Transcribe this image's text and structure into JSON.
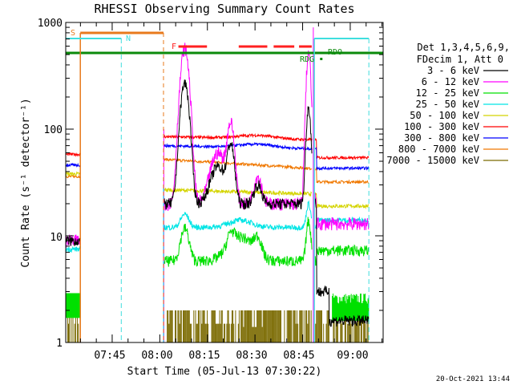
{
  "chart_data": {
    "type": "line",
    "title": "RHESSI Observing Summary Count Rates",
    "xlabel": "Start Time (05-Jul-13 07:30:22)",
    "ylabel": "Count Rate (s⁻¹ detector⁻¹)",
    "yscale": "log",
    "ylim": [
      1,
      1000
    ],
    "xlim_minutes": [
      0,
      100
    ],
    "x_ticks": [
      "07:45",
      "08:00",
      "08:15",
      "08:30",
      "08:45",
      "09:00"
    ],
    "y_ticks": [
      "1",
      "10",
      "100",
      "1000"
    ],
    "timestamp": "20-Oct-2021 13:44",
    "legend_header": [
      "Det 1,3,4,5,6,9,",
      "FDecim 1, Att 0"
    ],
    "flag_labels": {
      "saa": "S",
      "night": "N",
      "flare": "F",
      "rdg": "RDG",
      "rdo": "RDO"
    },
    "flag_colors": {
      "saa": "#e87a1c",
      "night": "#3fdede",
      "flare": "#ff2020",
      "decim": "#0a8a0a"
    },
    "series": [
      {
        "name": "3 - 6 keV",
        "color": "#000000"
      },
      {
        "name": "6 - 12 keV",
        "color": "#ff00ff"
      },
      {
        "name": "12 - 25 keV",
        "color": "#00e000"
      },
      {
        "name": "25 - 50 keV",
        "color": "#00e5e5"
      },
      {
        "name": "50 - 100 keV",
        "color": "#d4d400"
      },
      {
        "name": "100 - 300 keV",
        "color": "#ff0000"
      },
      {
        "name": "300 - 800 keV",
        "color": "#0000ff"
      },
      {
        "name": "800 - 7000 keV",
        "color": "#f07800"
      },
      {
        "name": "7000 - 15000 keV",
        "color": "#7a6a00"
      }
    ]
  }
}
